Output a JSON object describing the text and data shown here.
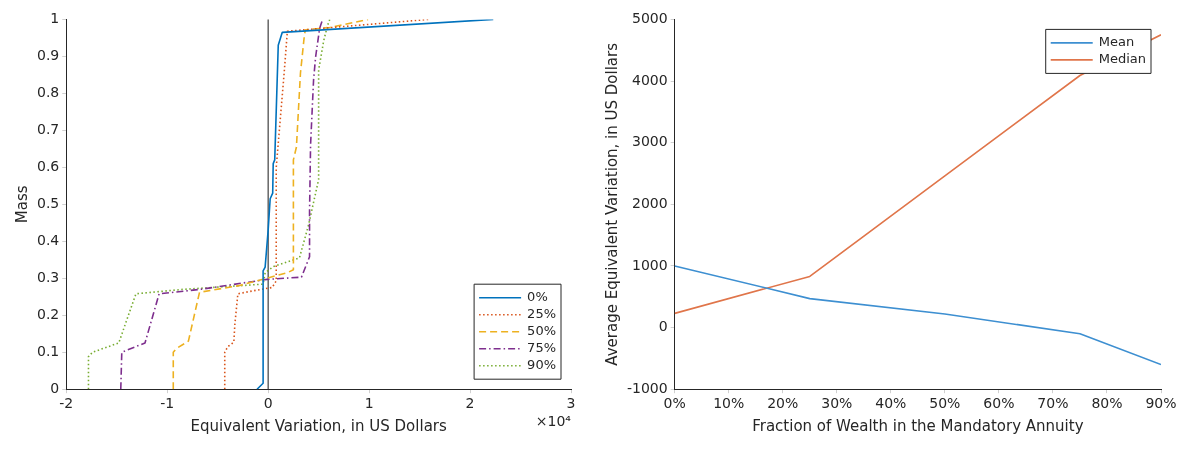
{
  "chart_data": [
    {
      "type": "line",
      "xlabel": "Equivalent Variation, in US Dollars",
      "ylabel": "Mass",
      "annotations": [
        "×10⁴"
      ],
      "xlim": [
        -2,
        3
      ],
      "xticks": [
        -2,
        -1,
        0,
        1,
        2,
        3
      ],
      "ylim": [
        0,
        1
      ],
      "yticks": [
        0,
        0.1,
        0.2,
        0.3,
        0.4,
        0.5,
        0.6,
        0.7,
        0.8,
        0.9,
        1
      ],
      "grid": false,
      "legend": "bottom right",
      "marker": "none",
      "ref_lines": [
        {
          "axis": "x",
          "value": 0,
          "color": "#404040"
        }
      ],
      "series": [
        {
          "name": "0%",
          "color": "#0072bd",
          "line_style": "solid",
          "x": [
            -0.11,
            -0.05,
            -0.05,
            -0.03,
            0,
            0.02,
            0.045,
            0.05,
            0.065,
            0.1,
            0.14,
            2.23
          ],
          "values": [
            0,
            0.016,
            0.32,
            0.33,
            0.43,
            0.515,
            0.53,
            0.61,
            0.62,
            0.93,
            0.965,
            1.0
          ]
        },
        {
          "name": "25%",
          "color": "#d95319",
          "line_style": "dotted",
          "x": [
            -0.43,
            -0.43,
            -0.4,
            -0.34,
            -0.33,
            -0.3,
            -0.15,
            0.04,
            0.08,
            0.08,
            0.16,
            0.19,
            0.54,
            1.59
          ],
          "values": [
            0,
            0.1,
            0.115,
            0.127,
            0.175,
            0.258,
            0.266,
            0.275,
            0.293,
            0.6,
            0.86,
            0.968,
            0.976,
            1.0
          ]
        },
        {
          "name": "50%",
          "color": "#edb120",
          "line_style": "dashed",
          "x": [
            -0.94,
            -0.94,
            -0.91,
            -0.79,
            -0.68,
            -0.29,
            0.19,
            0.25,
            0.25,
            0.28,
            0.32,
            0.36,
            0.37,
            0.61,
            0.99
          ],
          "values": [
            0,
            0.1,
            0.11,
            0.13,
            0.262,
            0.28,
            0.315,
            0.323,
            0.62,
            0.655,
            0.855,
            0.96,
            0.972,
            0.978,
            1.0
          ]
        },
        {
          "name": "75%",
          "color": "#7e2f8e",
          "line_style": "dashdot",
          "x": [
            -1.46,
            -1.45,
            -1.22,
            -1.08,
            -0.67,
            -0.01,
            0.33,
            0.41,
            0.41,
            0.42,
            0.45,
            0.47,
            0.51,
            0.54
          ],
          "values": [
            0,
            0.1,
            0.125,
            0.258,
            0.27,
            0.297,
            0.303,
            0.358,
            0.48,
            0.66,
            0.837,
            0.898,
            0.976,
            1.0
          ]
        },
        {
          "name": "90%",
          "color": "#77ac30",
          "line_style": "dotted",
          "x": [
            -1.78,
            -1.78,
            -1.74,
            -1.48,
            -1.31,
            -0.84,
            -0.05,
            -0.03,
            0.055,
            0.31,
            0.4,
            0.5,
            0.5,
            0.55,
            0.59,
            0.61
          ],
          "values": [
            0,
            0.088,
            0.1,
            0.125,
            0.258,
            0.27,
            0.284,
            0.315,
            0.332,
            0.355,
            0.444,
            0.567,
            0.863,
            0.942,
            0.985,
            1.0
          ]
        }
      ]
    },
    {
      "type": "line",
      "xlabel": "Fraction of Wealth in the Mandatory Annuity",
      "ylabel": "Average Equivalent Variation, in US Dollars",
      "x": [
        0,
        25,
        50,
        75,
        90
      ],
      "xlim": [
        0,
        90
      ],
      "xticks": [
        {
          "value": 0,
          "label": "0%"
        },
        {
          "value": 10,
          "label": "10%"
        },
        {
          "value": 20,
          "label": "20%"
        },
        {
          "value": 30,
          "label": "30%"
        },
        {
          "value": 40,
          "label": "40%"
        },
        {
          "value": 50,
          "label": "50%"
        },
        {
          "value": 60,
          "label": "60%"
        },
        {
          "value": 70,
          "label": "70%"
        },
        {
          "value": 80,
          "label": "80%"
        },
        {
          "value": 90,
          "label": "90%"
        }
      ],
      "ylim": [
        -1000,
        5000
      ],
      "yticks": [
        -1000,
        0,
        1000,
        2000,
        3000,
        4000,
        5000
      ],
      "grid": false,
      "legend": "top right",
      "marker": "none",
      "series": [
        {
          "name": "Mean",
          "color": "#3d8fd1",
          "line_style": "solid",
          "values": [
            1000,
            470,
            220,
            -100,
            -600
          ]
        },
        {
          "name": "Median",
          "color": "#e0754a",
          "line_style": "solid",
          "values": [
            230,
            830,
            2460,
            4090,
            4750
          ]
        }
      ]
    }
  ]
}
